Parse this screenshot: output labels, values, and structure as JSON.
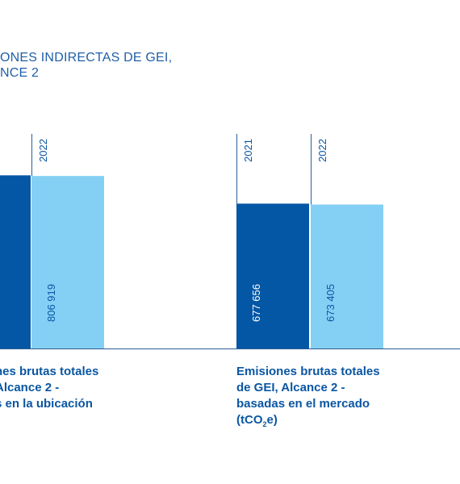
{
  "title_lines": [
    "ONES INDIRECTAS DE GEI,",
    "NCE 2"
  ],
  "colors": {
    "dark": "#0457a5",
    "light": "#84d0f5",
    "text_dark": "#0a56a3",
    "title": "#1f5fa8",
    "axis": "#2a5d95"
  },
  "chart_data": {
    "type": "bar",
    "title": "",
    "ylim": [
      0,
      1000000
    ],
    "groups": [
      {
        "caption_lines": [
          "nes brutas totales",
          "Alcance 2 -",
          "s en la ubicación"
        ],
        "bars": [
          {
            "year": "",
            "value": 810000,
            "value_label": ""
          },
          {
            "year": "2022",
            "value": 806919,
            "value_label": "806 919"
          }
        ]
      },
      {
        "caption_lines": [
          "Emisiones brutas totales",
          "de GEI, Alcance 2 -",
          "basadas en el mercado",
          "(tCO"
        ],
        "caption_sub": "2",
        "caption_tail": "e)",
        "bars": [
          {
            "year": "2021",
            "value": 677656,
            "value_label": "677 656"
          },
          {
            "year": "2022",
            "value": 673405,
            "value_label": "673 405"
          }
        ]
      }
    ]
  }
}
